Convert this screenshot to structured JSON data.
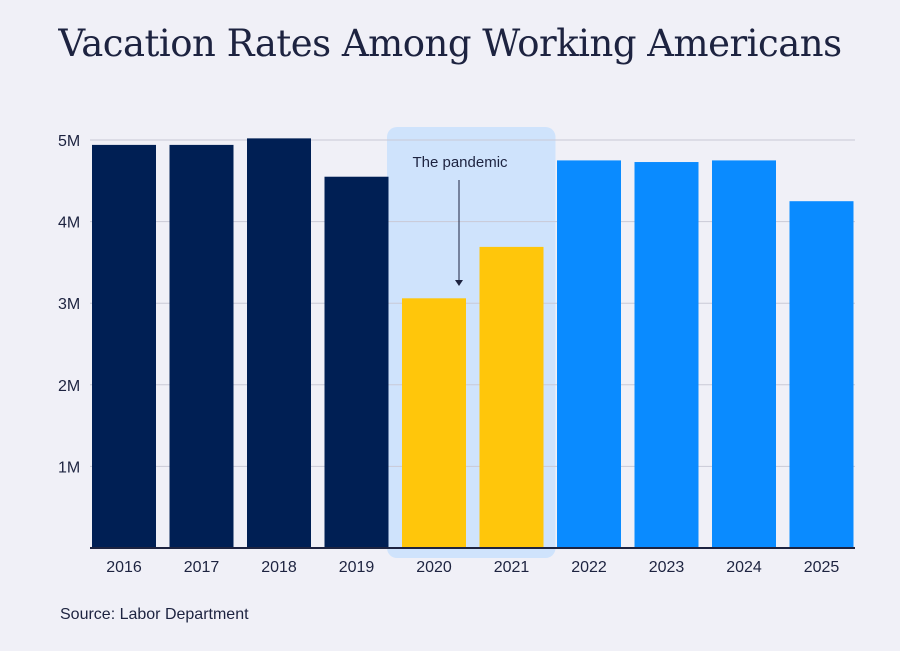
{
  "chart_data": {
    "type": "bar",
    "title": "Vacation Rates Among Working Americans",
    "categories": [
      "2016",
      "2017",
      "2018",
      "2019",
      "2020",
      "2021",
      "2022",
      "2023",
      "2024",
      "2025"
    ],
    "values": [
      4.94,
      4.94,
      5.02,
      4.55,
      3.06,
      3.69,
      4.75,
      4.73,
      4.75,
      4.25
    ],
    "value_unit": "millions",
    "ylim": [
      0,
      5
    ],
    "yticks": [
      {
        "v": 1,
        "label": "1M"
      },
      {
        "v": 2,
        "label": "2M"
      },
      {
        "v": 3,
        "label": "3M"
      },
      {
        "v": 4,
        "label": "4M"
      },
      {
        "v": 5,
        "label": "5M"
      }
    ],
    "grid": true,
    "bar_colors": [
      "#001f54",
      "#001f54",
      "#001f54",
      "#001f54",
      "#ffc60b",
      "#ffc60b",
      "#0a8bff",
      "#0a8bff",
      "#0a8bff",
      "#0a8bff"
    ],
    "highlight": {
      "categories": [
        "2020",
        "2021"
      ],
      "color": "#cfe3fc",
      "annotation": "The pandemic"
    },
    "source": "Source: Labor Department"
  }
}
